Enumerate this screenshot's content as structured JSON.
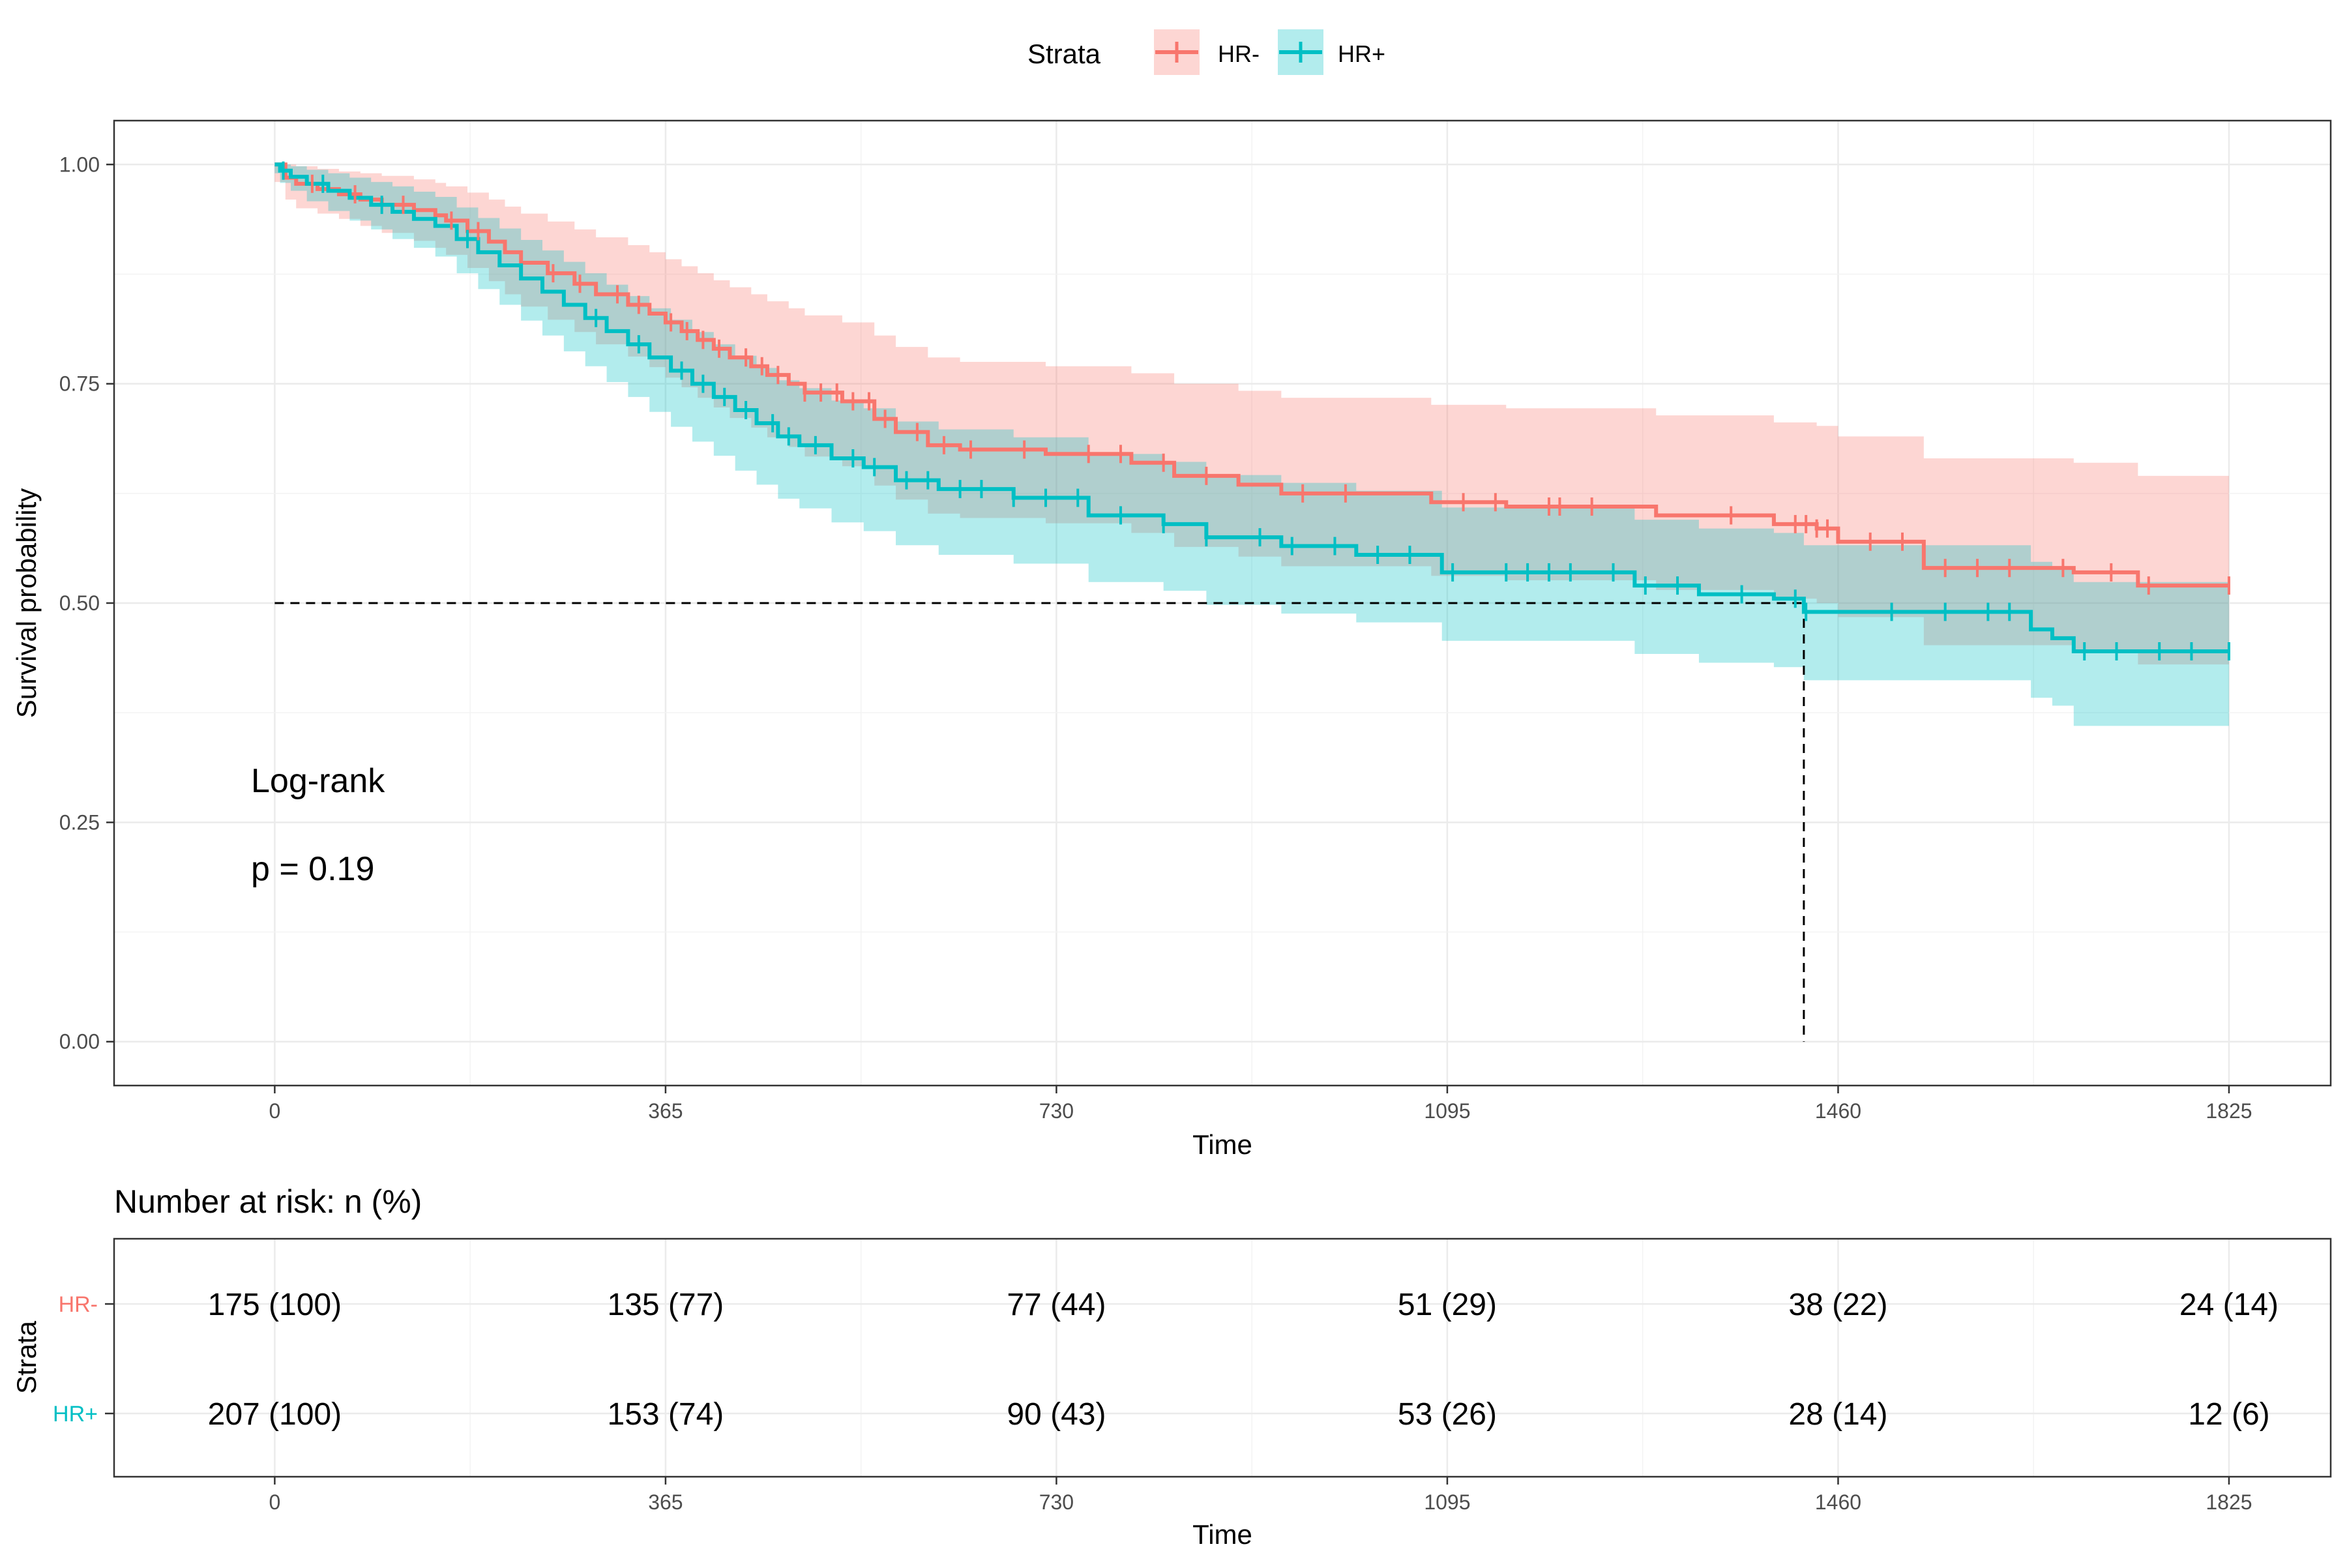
{
  "chart_data": {
    "type": "line",
    "title": "",
    "legend": {
      "title": "Strata",
      "position": "top",
      "entries": [
        "HR-",
        "HR+"
      ]
    },
    "xlabel": "Time",
    "ylabel": "Survival probability",
    "xlim": [
      -150,
      1920
    ],
    "ylim": [
      -0.05,
      1.05
    ],
    "xticks": [
      0,
      365,
      730,
      1095,
      1460,
      1825
    ],
    "yticks": [
      0.0,
      0.25,
      0.5,
      0.75,
      1.0
    ],
    "ytick_labels": [
      "0.00",
      "0.25",
      "0.50",
      "0.75",
      "1.00"
    ],
    "grid": true,
    "annotations": {
      "test": "Log-rank",
      "pvalue": "p = 0.19"
    },
    "median_survival": {
      "HR+": 1428
    },
    "colors": {
      "HR-": "#F8766D",
      "HR+": "#00BFC4"
    },
    "series": [
      {
        "name": "HR-",
        "color": "#F8766D",
        "step_x": [
          0,
          10,
          20,
          40,
          60,
          80,
          100,
          130,
          150,
          160,
          180,
          200,
          215,
          230,
          255,
          280,
          300,
          330,
          350,
          365,
          380,
          395,
          410,
          425,
          445,
          460,
          480,
          495,
          530,
          560,
          580,
          610,
          640,
          720,
          800,
          840,
          900,
          940,
          1080,
          1150,
          1290,
          1400,
          1440,
          1460,
          1540,
          1580,
          1620,
          1680,
          1740,
          1825
        ],
        "step_y": [
          1.0,
          0.985,
          0.978,
          0.972,
          0.966,
          0.96,
          0.954,
          0.948,
          0.942,
          0.936,
          0.924,
          0.912,
          0.9,
          0.888,
          0.876,
          0.864,
          0.852,
          0.84,
          0.83,
          0.82,
          0.81,
          0.8,
          0.79,
          0.78,
          0.77,
          0.76,
          0.75,
          0.74,
          0.73,
          0.71,
          0.695,
          0.68,
          0.675,
          0.67,
          0.66,
          0.645,
          0.635,
          0.625,
          0.615,
          0.61,
          0.6,
          0.59,
          0.585,
          0.57,
          0.54,
          0.54,
          0.54,
          0.535,
          0.52,
          0.52
        ],
        "censor_x": [
          35,
          75,
          120,
          165,
          190,
          260,
          285,
          320,
          340,
          370,
          385,
          400,
          415,
          440,
          455,
          470,
          495,
          510,
          525,
          540,
          555,
          570,
          600,
          625,
          650,
          700,
          760,
          790,
          830,
          870,
          960,
          1000,
          1110,
          1140,
          1190,
          1200,
          1230,
          1360,
          1420,
          1430,
          1440,
          1450,
          1490,
          1520,
          1560,
          1590,
          1620,
          1670,
          1715,
          1750,
          1825
        ],
        "ci_upper": [
          1.0,
          1.0,
          0.998,
          0.995,
          0.992,
          0.99,
          0.987,
          0.983,
          0.979,
          0.975,
          0.968,
          0.96,
          0.952,
          0.944,
          0.935,
          0.926,
          0.917,
          0.908,
          0.9,
          0.892,
          0.884,
          0.876,
          0.868,
          0.86,
          0.852,
          0.844,
          0.836,
          0.828,
          0.82,
          0.805,
          0.792,
          0.78,
          0.775,
          0.77,
          0.762,
          0.75,
          0.742,
          0.734,
          0.726,
          0.722,
          0.714,
          0.706,
          0.702,
          0.69,
          0.665,
          0.665,
          0.665,
          0.66,
          0.645,
          0.628
        ],
        "ci_lower": [
          0.98,
          0.96,
          0.95,
          0.944,
          0.938,
          0.93,
          0.922,
          0.913,
          0.905,
          0.897,
          0.882,
          0.867,
          0.852,
          0.838,
          0.823,
          0.809,
          0.795,
          0.781,
          0.769,
          0.757,
          0.746,
          0.734,
          0.723,
          0.711,
          0.7,
          0.689,
          0.678,
          0.667,
          0.656,
          0.634,
          0.618,
          0.602,
          0.597,
          0.591,
          0.58,
          0.564,
          0.553,
          0.542,
          0.531,
          0.526,
          0.515,
          0.505,
          0.5,
          0.484,
          0.452,
          0.452,
          0.452,
          0.446,
          0.43,
          0.43
        ]
      },
      {
        "name": "HR+",
        "color": "#00BFC4",
        "step_x": [
          0,
          5,
          15,
          30,
          50,
          70,
          90,
          110,
          130,
          150,
          170,
          190,
          210,
          230,
          250,
          270,
          290,
          310,
          330,
          350,
          370,
          390,
          410,
          430,
          450,
          470,
          490,
          520,
          550,
          580,
          620,
          690,
          760,
          830,
          870,
          940,
          1010,
          1090,
          1130,
          1270,
          1330,
          1400,
          1428,
          1460,
          1640,
          1660,
          1680,
          1700,
          1825
        ],
        "step_y": [
          1.0,
          0.993,
          0.986,
          0.978,
          0.97,
          0.962,
          0.954,
          0.946,
          0.938,
          0.93,
          0.915,
          0.9,
          0.885,
          0.87,
          0.855,
          0.84,
          0.825,
          0.81,
          0.795,
          0.78,
          0.765,
          0.75,
          0.735,
          0.72,
          0.705,
          0.69,
          0.68,
          0.665,
          0.655,
          0.64,
          0.63,
          0.62,
          0.6,
          0.59,
          0.575,
          0.565,
          0.555,
          0.535,
          0.535,
          0.52,
          0.51,
          0.505,
          0.49,
          0.49,
          0.47,
          0.46,
          0.445,
          0.445,
          0.445
        ],
        "censor_x": [
          8,
          45,
          100,
          180,
          300,
          340,
          380,
          400,
          420,
          440,
          465,
          480,
          505,
          540,
          560,
          590,
          610,
          640,
          660,
          690,
          720,
          750,
          790,
          830,
          870,
          920,
          950,
          990,
          1030,
          1060,
          1100,
          1150,
          1170,
          1190,
          1210,
          1250,
          1280,
          1310,
          1370,
          1420,
          1430,
          1510,
          1560,
          1600,
          1620,
          1690,
          1720,
          1760,
          1790,
          1825
        ],
        "ci_upper": [
          1.0,
          1.0,
          0.998,
          0.994,
          0.99,
          0.985,
          0.98,
          0.975,
          0.969,
          0.963,
          0.951,
          0.939,
          0.927,
          0.914,
          0.902,
          0.889,
          0.876,
          0.863,
          0.85,
          0.836,
          0.823,
          0.809,
          0.795,
          0.782,
          0.768,
          0.754,
          0.745,
          0.731,
          0.722,
          0.707,
          0.698,
          0.689,
          0.67,
          0.661,
          0.646,
          0.637,
          0.628,
          0.609,
          0.609,
          0.595,
          0.585,
          0.58,
          0.566,
          0.566,
          0.547,
          0.538,
          0.524,
          0.524,
          0.524
        ],
        "ci_lower": [
          0.99,
          0.979,
          0.97,
          0.958,
          0.947,
          0.936,
          0.926,
          0.915,
          0.905,
          0.895,
          0.876,
          0.858,
          0.84,
          0.822,
          0.805,
          0.787,
          0.77,
          0.752,
          0.735,
          0.718,
          0.701,
          0.684,
          0.668,
          0.651,
          0.635,
          0.619,
          0.608,
          0.592,
          0.582,
          0.566,
          0.555,
          0.545,
          0.524,
          0.514,
          0.498,
          0.488,
          0.478,
          0.457,
          0.457,
          0.442,
          0.432,
          0.427,
          0.412,
          0.412,
          0.392,
          0.383,
          0.36,
          0.36,
          0.36
        ]
      }
    ],
    "risk_table": {
      "title": "Number at risk: n (%)",
      "xlabel": "Time",
      "ylabel": "Strata",
      "times": [
        0,
        365,
        730,
        1095,
        1460,
        1825
      ],
      "rows": [
        {
          "name": "HR-",
          "values": [
            "175 (100)",
            "135 (77)",
            "77 (44)",
            "51 (29)",
            "38 (22)",
            "24 (14)"
          ]
        },
        {
          "name": "HR+",
          "values": [
            "207 (100)",
            "153 (74)",
            "90 (43)",
            "53 (26)",
            "28 (14)",
            "12 (6)"
          ]
        }
      ]
    }
  }
}
